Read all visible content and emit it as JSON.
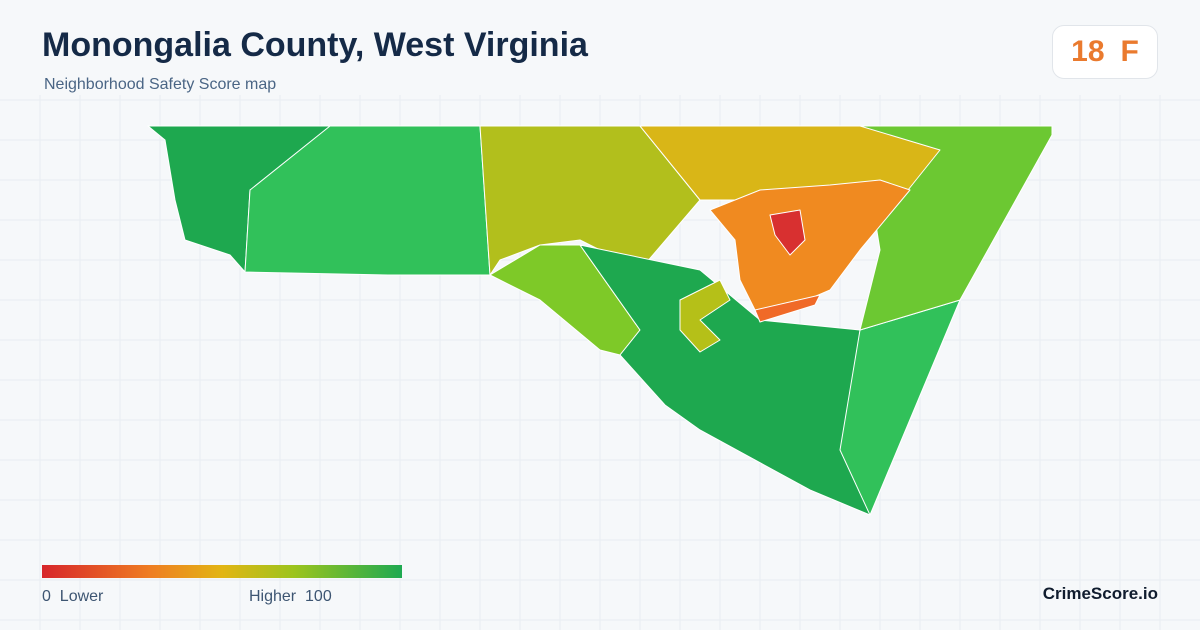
{
  "header": {
    "title": "Monongalia County, West Virginia",
    "subtitle": "Neighborhood Safety Score map",
    "score": 18,
    "grade": "F"
  },
  "legend": {
    "min": 0,
    "min_label": "Lower",
    "max_label": "Higher",
    "max": 100
  },
  "footer": {
    "brand": "CrimeScore.io"
  }
}
